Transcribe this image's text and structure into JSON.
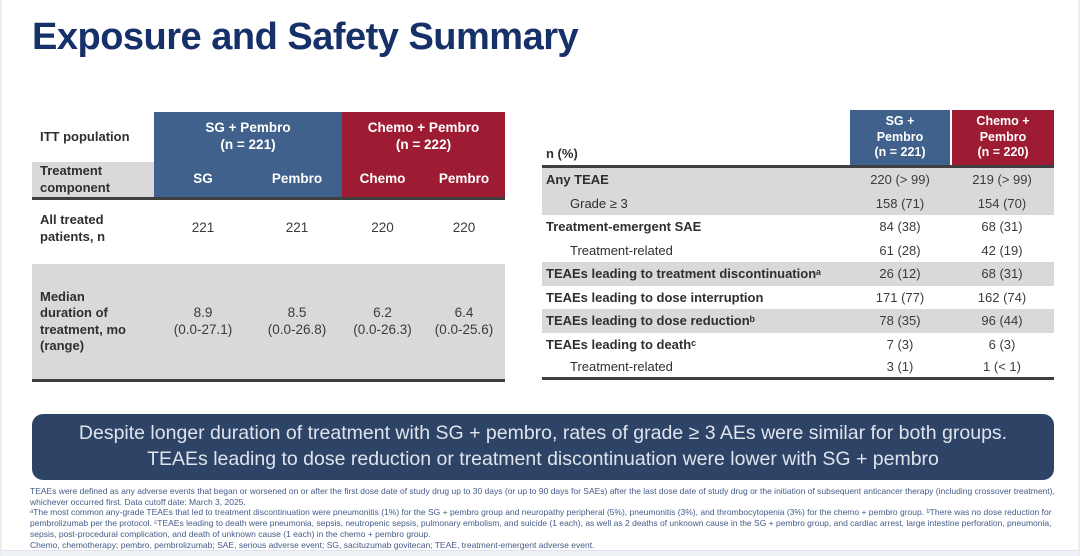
{
  "title": "Exposure and Safety Summary",
  "colors": {
    "navy_title": "#16306a",
    "blue_header": "#3f618c",
    "red_header": "#9e1c33",
    "gray_row": "#d9d9d9",
    "summary_bg": "#2e4466"
  },
  "left_table": {
    "itt_label": "ITT population",
    "component_label": "Treatment\ncomponent",
    "group_sg": "SG + Pembro\n(n = 221)",
    "group_chemo": "Chemo + Pembro\n(n = 222)",
    "cols": [
      "SG",
      "Pembro",
      "Chemo",
      "Pembro"
    ],
    "all_treated": {
      "label": "All treated\npatients, n",
      "values": [
        "221",
        "221",
        "220",
        "220"
      ]
    },
    "median": {
      "label": "Median\nduration of\ntreatment, mo\n(range)",
      "values": [
        {
          "value": "8.9",
          "range": "(0.0-27.1)"
        },
        {
          "value": "8.5",
          "range": "(0.0-26.8)"
        },
        {
          "value": "6.2",
          "range": "(0.0-26.3)"
        },
        {
          "value": "6.4",
          "range": "(0.0-25.6)"
        }
      ]
    }
  },
  "right_table": {
    "header_label": "n (%)",
    "group_sg": "SG +\nPembro\n(n = 221)",
    "group_chemo": "Chemo +\nPembro\n(n = 220)",
    "rows": [
      {
        "label": "Any TEAE",
        "sg": "220 (> 99)",
        "chemo": "219 (> 99)"
      },
      {
        "label": "Grade ≥ 3",
        "sg": "158 (71)",
        "chemo": "154 (70)"
      },
      {
        "label": "Treatment-emergent SAE",
        "sg": "84 (38)",
        "chemo": "68 (31)"
      },
      {
        "label": "Treatment-related",
        "sg": "61 (28)",
        "chemo": "42 (19)"
      },
      {
        "label": "TEAEs leading to treatment discontinuationᵃ",
        "sg": "26 (12)",
        "chemo": "68 (31)"
      },
      {
        "label": "TEAEs leading to dose interruption",
        "sg": "171 (77)",
        "chemo": "162 (74)"
      },
      {
        "label": "TEAEs leading to dose reductionᵇ",
        "sg": "78 (35)",
        "chemo": "96 (44)"
      },
      {
        "label": "TEAEs leading to deathᶜ",
        "sg": "7 (3)",
        "chemo": "6 (3)"
      },
      {
        "label": "Treatment-related",
        "sg": "3 (1)",
        "chemo": "1 (< 1)"
      }
    ]
  },
  "summary": "Despite longer duration of treatment with SG + pembro, rates of grade ≥ 3 AEs were similar for both groups. TEAEs leading to dose reduction or treatment discontinuation were lower with SG + pembro",
  "footnotes": [
    "TEAEs were defined as any adverse events that began or worsened on or after the first dose date of study drug up to 30 days (or up to 90 days for SAEs) after the last dose date of study drug or the initiation of subsequent anticancer therapy (including crossover treatment),",
    "whichever occurred first. Data cutoff date: March 3, 2025.",
    "ᵃThe most common any-grade TEAEs that led to treatment discontinuation were pneumonitis (1%) for the SG + pembro group and neuropathy peripheral (5%), pneumonitis (3%), and thrombocytopenia (3%) for the chemo + pembro group. ᵇThere was no dose reduction for",
    "pembrolizumab per the protocol. ᶜTEAEs leading to death were pneumonia, sepsis, neutropenic sepsis, pulmonary embolism, and suicide (1 each), as well as 2 deaths of unknown cause in the SG + pembro group, and cardiac arrest, large intestine perforation, pneumonia,",
    "sepsis, post-procedural complication, and death of unknown cause (1 each) in the chemo + pembro group.",
    "Chemo, chemotherapy; pembro, pembrolizumab; SAE, serious adverse event; SG, sacituzumab govitecan; TEAE, treatment-emergent adverse event."
  ]
}
